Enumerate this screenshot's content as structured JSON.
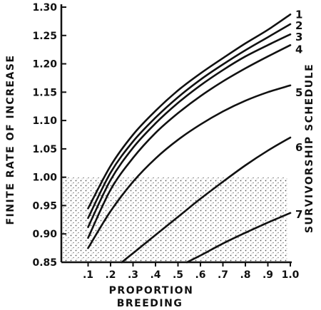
{
  "chart_data": {
    "type": "line",
    "title": "",
    "xlabel_line1": "PROPORTION",
    "xlabel_line2": "BREEDING",
    "ylabel": "FINITE RATE OF INCREASE",
    "right_label": "SURVIVORSHIP SCHEDULE",
    "xlim": [
      0.0,
      1.0
    ],
    "ylim": [
      0.85,
      1.3
    ],
    "x_ticks": [
      ".1",
      ".2",
      ".3",
      ".4",
      ".5",
      ".6",
      ".7",
      ".8",
      ".9",
      "1.0"
    ],
    "y_ticks": [
      "0.85",
      "0.90",
      "0.95",
      "1.00",
      "1.05",
      "1.10",
      "1.15",
      "1.20",
      "1.25",
      "1.30"
    ],
    "shaded_region": {
      "y_below": 1.0,
      "pattern": "stippled"
    },
    "grid": false,
    "series": [
      {
        "name": "1",
        "x": [
          0.1,
          0.2,
          0.3,
          0.4,
          0.5,
          0.6,
          0.7,
          0.8,
          0.9,
          1.0
        ],
        "y": [
          0.945,
          1.02,
          1.075,
          1.117,
          1.153,
          1.183,
          1.21,
          1.236,
          1.26,
          1.287
        ]
      },
      {
        "name": "2",
        "x": [
          0.1,
          0.2,
          0.3,
          0.4,
          0.5,
          0.6,
          0.7,
          0.8,
          0.9,
          1.0
        ],
        "y": [
          0.928,
          1.008,
          1.063,
          1.105,
          1.141,
          1.172,
          1.199,
          1.224,
          1.247,
          1.27
        ]
      },
      {
        "name": "3",
        "x": [
          0.1,
          0.2,
          0.3,
          0.4,
          0.5,
          0.6,
          0.7,
          0.8,
          0.9,
          1.0
        ],
        "y": [
          0.912,
          0.995,
          1.052,
          1.095,
          1.131,
          1.162,
          1.189,
          1.213,
          1.233,
          1.252
        ]
      },
      {
        "name": "4",
        "x": [
          0.1,
          0.2,
          0.3,
          0.4,
          0.5,
          0.6,
          0.7,
          0.8,
          0.9,
          1.0
        ],
        "y": [
          0.893,
          0.978,
          1.034,
          1.078,
          1.113,
          1.143,
          1.169,
          1.192,
          1.213,
          1.233
        ]
      },
      {
        "name": "5",
        "x": [
          0.1,
          0.2,
          0.3,
          0.4,
          0.5,
          0.6,
          0.7,
          0.8,
          0.9,
          1.0
        ],
        "y": [
          0.875,
          0.94,
          0.992,
          1.033,
          1.066,
          1.093,
          1.116,
          1.135,
          1.15,
          1.162
        ]
      },
      {
        "name": "6",
        "x": [
          0.25,
          0.3,
          0.4,
          0.5,
          0.6,
          0.7,
          0.8,
          0.9,
          1.0
        ],
        "y": [
          0.85,
          0.866,
          0.898,
          0.93,
          0.962,
          0.992,
          1.021,
          1.047,
          1.07
        ]
      },
      {
        "name": "7",
        "x": [
          0.54,
          0.6,
          0.7,
          0.8,
          0.9,
          1.0
        ],
        "y": [
          0.85,
          0.862,
          0.883,
          0.902,
          0.92,
          0.937
        ]
      }
    ]
  }
}
